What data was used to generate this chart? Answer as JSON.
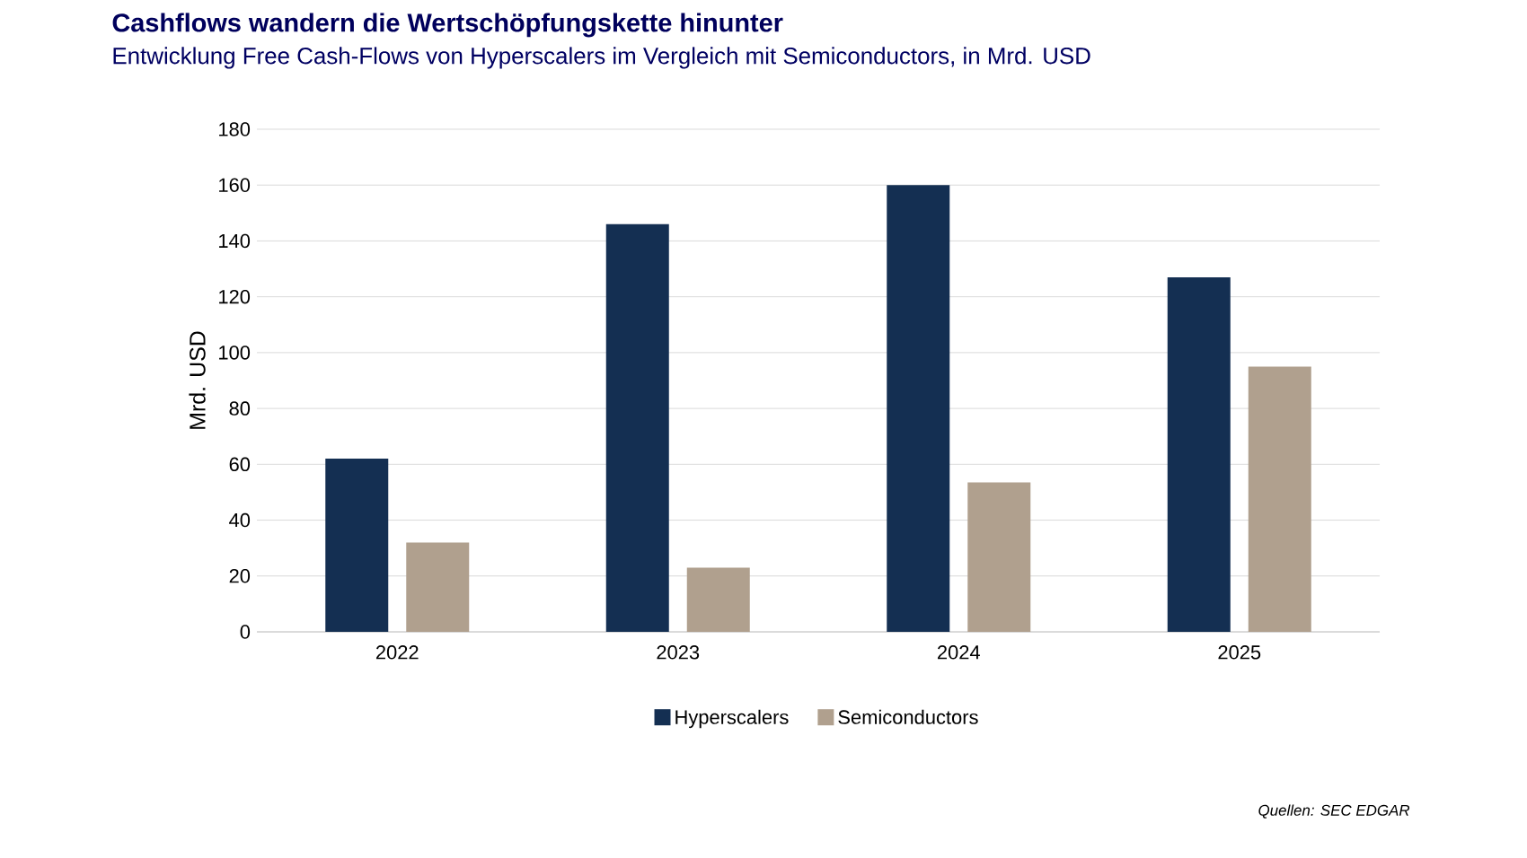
{
  "chart_data": {
    "type": "bar",
    "title": "Cashflows wandern die Wertschöpfungskette hinunter",
    "subtitle": "Entwicklung Free Cash-Flows von Hyperscalers im Vergleich mit Semiconductors, in Mrd. USD",
    "ylabel": "Mrd. USD",
    "categories": [
      "2022",
      "2023",
      "2024",
      "2025"
    ],
    "series": [
      {
        "name": "Hyperscalers",
        "color": "#142f52",
        "values": [
          62,
          146,
          160,
          127
        ]
      },
      {
        "name": "Semiconductors",
        "color": "#b0a08e",
        "values": [
          32,
          23,
          53.5,
          95
        ]
      }
    ],
    "ylim": [
      0,
      180
    ],
    "yticks": [
      0,
      20,
      40,
      60,
      80,
      100,
      120,
      140,
      160,
      180
    ],
    "grid": "y",
    "legend": "bottom",
    "annotations": [
      "Quellen: SEC EDGAR"
    ]
  }
}
